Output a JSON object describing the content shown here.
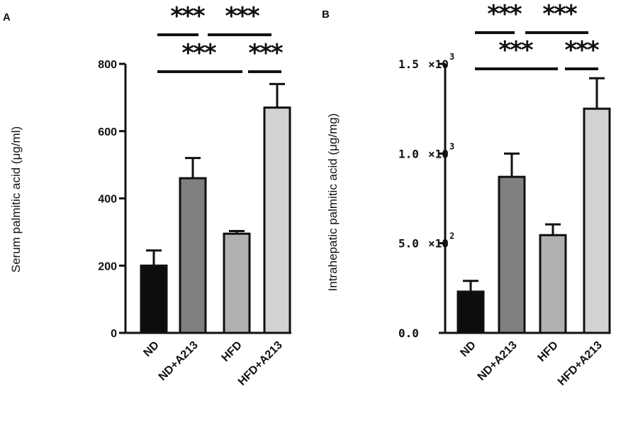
{
  "chart_data": [
    {
      "panel": "A",
      "type": "bar",
      "ylabel": "Serum palmitic acid (μg/ml)",
      "ylim": [
        0,
        800
      ],
      "yticks": [
        "0",
        "200",
        "400",
        "600",
        "800"
      ],
      "categories": [
        "ND",
        "ND+A213",
        "HFD",
        "HFD+A213"
      ],
      "values": [
        200,
        460,
        295,
        670
      ],
      "errors": [
        45,
        60,
        8,
        70
      ],
      "bar_colors": [
        "#0d0d0d",
        "#808080",
        "#b0b0b0",
        "#d2d2d2"
      ],
      "significance": "***"
    },
    {
      "panel": "B",
      "type": "bar",
      "ylabel": "Intrahepatic palmitic acid (μg/mg)",
      "ylim": [
        0,
        1500
      ],
      "yticks": [
        {
          "mantissa": "0.0",
          "exp": ""
        },
        {
          "mantissa": "5.0",
          "exp": "2"
        },
        {
          "mantissa": "1.0",
          "exp": "3"
        },
        {
          "mantissa": "1.5",
          "exp": "3"
        }
      ],
      "categories": [
        "ND",
        "ND+A213",
        "HFD",
        "HFD+A213"
      ],
      "values": [
        230,
        870,
        545,
        1250
      ],
      "errors": [
        60,
        130,
        60,
        170
      ],
      "bar_colors": [
        "#0d0d0d",
        "#808080",
        "#b0b0b0",
        "#d2d2d2"
      ],
      "significance": "***"
    }
  ]
}
